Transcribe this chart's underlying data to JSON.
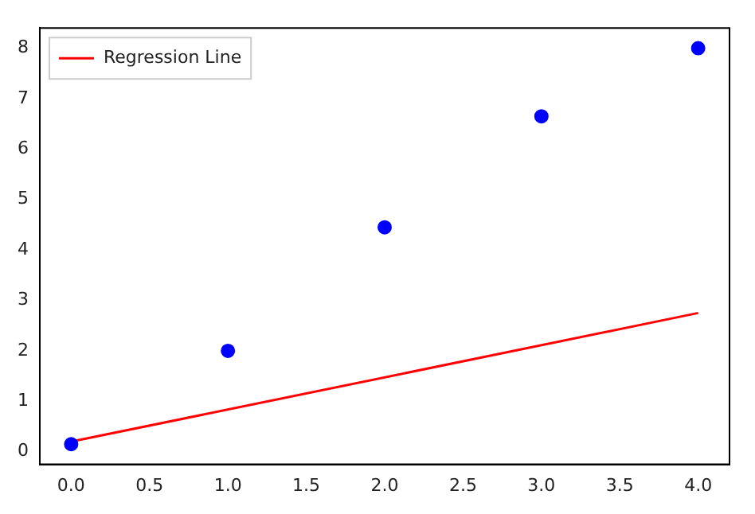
{
  "chart_data": {
    "type": "scatter",
    "x": [
      0,
      1,
      2,
      3,
      4
    ],
    "series": [
      {
        "type": "scatter",
        "color": "#0000ff",
        "values": [
          0.15,
          2,
          4.45,
          6.65,
          8
        ],
        "marker": "circle"
      },
      {
        "type": "line",
        "name": "Regression Line",
        "color": "#ff0000",
        "x": [
          0,
          4
        ],
        "values": [
          0.2,
          2.75
        ],
        "marker": "none",
        "line_style": "solid"
      }
    ],
    "xlim": [
      -0.2,
      4.2
    ],
    "ylim": [
      -0.25,
      8.4
    ],
    "xticks": [
      {
        "value": 0,
        "label": "0.0"
      },
      {
        "value": 0.5,
        "label": "0.5"
      },
      {
        "value": 1,
        "label": "1.0"
      },
      {
        "value": 1.5,
        "label": "1.5"
      },
      {
        "value": 2,
        "label": "2.0"
      },
      {
        "value": 2.5,
        "label": "2.5"
      },
      {
        "value": 3,
        "label": "3.0"
      },
      {
        "value": 3.5,
        "label": "3.5"
      },
      {
        "value": 4,
        "label": "4.0"
      }
    ],
    "yticks": [
      0,
      1,
      2,
      3,
      4,
      5,
      6,
      7,
      8
    ],
    "grid": false,
    "legend": "top left"
  }
}
